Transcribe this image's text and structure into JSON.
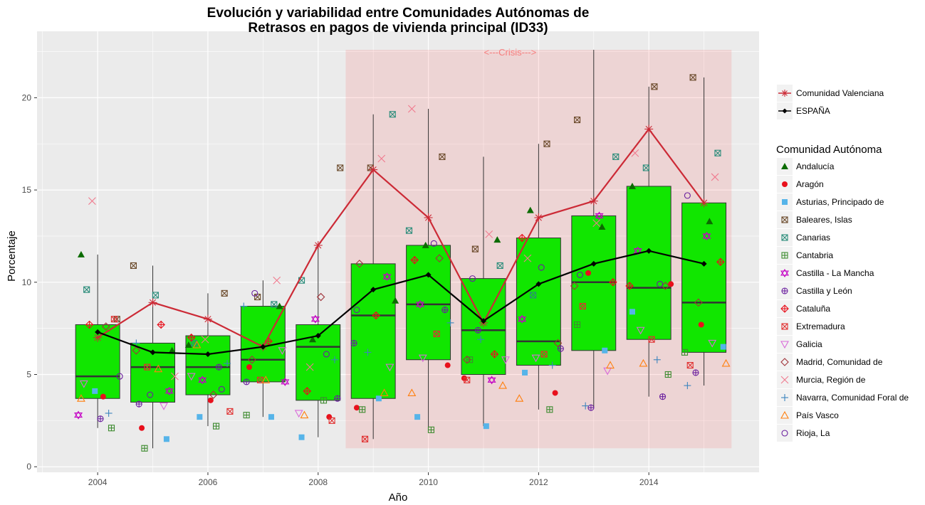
{
  "chart_data": {
    "type": "boxplot",
    "title_line1": "Evolución y variabilidad entre Comunidades Autónomas de",
    "title_line2": "Retrasos en pagos de vivienda principal (ID33)",
    "xlabel": "Año",
    "ylabel": "Porcentaje",
    "xlim": [
      2002.9,
      2016.0
    ],
    "ylim": [
      -0.3,
      23.6
    ],
    "x_ticks": [
      2004,
      2006,
      2008,
      2010,
      2012,
      2014
    ],
    "y_ticks": [
      0,
      5,
      10,
      15,
      20
    ],
    "grid": true,
    "crisis": {
      "x_start": 2008.5,
      "x_end": 2015.5,
      "y_min": 1.0,
      "y_max": 22.6,
      "label": "<---Crisis--->",
      "color": "#ff3333"
    },
    "years": [
      2004,
      2005,
      2006,
      2007,
      2008,
      2009,
      2010,
      2011,
      2012,
      2013,
      2014,
      2015
    ],
    "boxes": [
      {
        "year": 2004,
        "min": 2.1,
        "q1": 3.7,
        "median": 4.9,
        "q3": 7.7,
        "max": 11.5
      },
      {
        "year": 2005,
        "min": 1.0,
        "q1": 3.5,
        "median": 5.4,
        "q3": 6.7,
        "max": 10.9
      },
      {
        "year": 2006,
        "min": 2.2,
        "q1": 3.9,
        "median": 5.4,
        "q3": 7.1,
        "max": 9.4
      },
      {
        "year": 2007,
        "min": 2.7,
        "q1": 4.6,
        "median": 5.8,
        "q3": 8.7,
        "max": 10.1
      },
      {
        "year": 2008,
        "min": 1.6,
        "q1": 3.6,
        "median": 6.5,
        "q3": 7.7,
        "max": 12.0
      },
      {
        "year": 2009,
        "min": 1.5,
        "q1": 3.7,
        "median": 8.2,
        "q3": 11.0,
        "max": 19.1
      },
      {
        "year": 2010,
        "min": 2.0,
        "q1": 5.8,
        "median": 8.8,
        "q3": 12.0,
        "max": 19.4
      },
      {
        "year": 2011,
        "min": 2.2,
        "q1": 5.0,
        "median": 7.4,
        "q3": 10.2,
        "max": 16.8
      },
      {
        "year": 2012,
        "min": 3.1,
        "q1": 5.5,
        "median": 6.8,
        "q3": 12.4,
        "max": 17.5
      },
      {
        "year": 2013,
        "min": 3.2,
        "q1": 6.3,
        "median": 10.0,
        "q3": 13.6,
        "max": 22.6
      },
      {
        "year": 2014,
        "min": 3.8,
        "q1": 6.9,
        "median": 9.7,
        "q3": 15.2,
        "max": 20.6
      },
      {
        "year": 2015,
        "min": 4.4,
        "q1": 6.2,
        "median": 8.9,
        "q3": 14.3,
        "max": 21.1
      }
    ],
    "box_fill": "#11e600",
    "lines": [
      {
        "name": "Comunidad Valenciana",
        "color": "#cc2a36",
        "marker": "asterisk",
        "values": [
          7.0,
          8.9,
          8.0,
          6.5,
          12.0,
          16.1,
          13.5,
          7.8,
          13.5,
          14.4,
          18.3,
          14.3
        ]
      },
      {
        "name": "ESPAÑA",
        "color": "#000000",
        "marker": "diamond",
        "values": [
          7.3,
          6.2,
          6.1,
          6.5,
          7.1,
          9.6,
          10.4,
          7.9,
          9.9,
          11.0,
          11.7,
          11.0
        ]
      }
    ],
    "legend_lines_entries": [
      "Comunidad Valenciana",
      "ESPAÑA"
    ],
    "legend_title": "Comunidad Autónoma",
    "legend_placement": "right",
    "series": [
      {
        "name": "Andalucía",
        "shape": "triangle",
        "color": "#0b6b00",
        "values": [
          11.5,
          6.3,
          6.6,
          8.7,
          6.9,
          9.0,
          12.0,
          12.3,
          13.9,
          13.0,
          15.2,
          13.3
        ]
      },
      {
        "name": "Aragón",
        "shape": "circle-filled",
        "color": "#e8101c",
        "values": [
          3.8,
          2.1,
          3.6,
          5.4,
          2.7,
          3.2,
          5.5,
          4.8,
          4.0,
          10.5,
          9.9,
          7.7
        ]
      },
      {
        "name": "Asturias, Principado de",
        "shape": "square-filled",
        "color": "#56b4e9",
        "values": [
          4.1,
          1.5,
          2.7,
          2.7,
          1.6,
          3.7,
          2.7,
          2.2,
          5.1,
          6.3,
          8.4,
          6.5
        ]
      },
      {
        "name": "Baleares, Islas",
        "shape": "square-x",
        "color": "#6b4a2b",
        "values": [
          8.0,
          10.9,
          9.4,
          9.2,
          16.2,
          16.2,
          16.8,
          11.8,
          17.5,
          18.8,
          20.6,
          21.1
        ]
      },
      {
        "name": "Canarias",
        "shape": "square-x2",
        "color": "#2a8c7a",
        "values": [
          9.6,
          9.3,
          6.7,
          8.8,
          10.1,
          19.1,
          12.8,
          10.9,
          9.3,
          16.8,
          16.2,
          17.0
        ]
      },
      {
        "name": "Cantabria",
        "shape": "square-plus",
        "color": "#3e8b30",
        "values": [
          2.1,
          1.0,
          2.2,
          2.8,
          3.6,
          3.1,
          2.0,
          5.8,
          3.1,
          7.7,
          5.0,
          6.2
        ]
      },
      {
        "name": "Castilla - La Mancha",
        "shape": "star-david",
        "color": "#c400c4",
        "values": [
          2.8,
          4.1,
          4.7,
          4.6,
          8.0,
          10.3,
          8.8,
          4.7,
          8.0,
          13.6,
          11.7,
          12.5
        ]
      },
      {
        "name": "Castilla y León",
        "shape": "circle-plus",
        "color": "#6a1f9e",
        "values": [
          2.6,
          3.4,
          5.4,
          4.6,
          3.7,
          6.7,
          8.5,
          7.4,
          6.4,
          3.2,
          3.8,
          5.1
        ]
      },
      {
        "name": "Cataluña",
        "shape": "diamond-plus",
        "color": "#e8101c",
        "values": [
          7.7,
          7.7,
          7.0,
          6.8,
          4.1,
          8.2,
          11.2,
          6.1,
          12.4,
          10.0,
          9.8,
          11.1
        ]
      },
      {
        "name": "Extremadura",
        "shape": "square-x",
        "color": "#e03030",
        "values": [
          8.0,
          5.4,
          3.0,
          4.7,
          2.5,
          1.5,
          7.2,
          4.7,
          6.1,
          8.7,
          6.9,
          5.5
        ]
      },
      {
        "name": "Galicia",
        "shape": "triangle-down",
        "color": "#d96bd9",
        "values": [
          4.5,
          3.3,
          4.9,
          6.3,
          2.9,
          5.4,
          5.9,
          5.8,
          5.9,
          5.2,
          7.4,
          6.7
        ]
      },
      {
        "name": "Madrid, Comunidad de",
        "shape": "diamond-open",
        "color": "#a0343b",
        "values": [
          7.6,
          6.3,
          3.9,
          5.8,
          9.2,
          11.0,
          11.3,
          5.8,
          6.7,
          9.8,
          9.8,
          8.9
        ]
      },
      {
        "name": "Murcia, Región de",
        "shape": "x",
        "color": "#f07a8e",
        "values": [
          14.4,
          4.9,
          6.9,
          10.1,
          5.4,
          16.7,
          19.4,
          12.6,
          11.3,
          13.2,
          17.0,
          15.7
        ]
      },
      {
        "name": "Navarra, Comunidad Foral de",
        "shape": "plus",
        "color": "#3b83bd",
        "values": [
          2.9,
          6.7,
          5.6,
          8.7,
          5.8,
          6.2,
          7.8,
          6.9,
          5.5,
          3.3,
          5.8,
          4.4
        ]
      },
      {
        "name": "País Vasco",
        "shape": "triangle-open",
        "color": "#ff7f0e",
        "values": [
          3.7,
          5.3,
          6.6,
          4.7,
          2.8,
          4.0,
          4.0,
          4.4,
          3.7,
          5.5,
          5.6,
          5.6
        ]
      },
      {
        "name": "Rioja, La",
        "shape": "circle-open",
        "color": "#6a1f9e",
        "values": [
          4.9,
          3.9,
          4.2,
          9.4,
          6.1,
          8.5,
          12.1,
          10.2,
          10.8,
          10.4,
          9.9,
          14.7
        ]
      }
    ]
  }
}
